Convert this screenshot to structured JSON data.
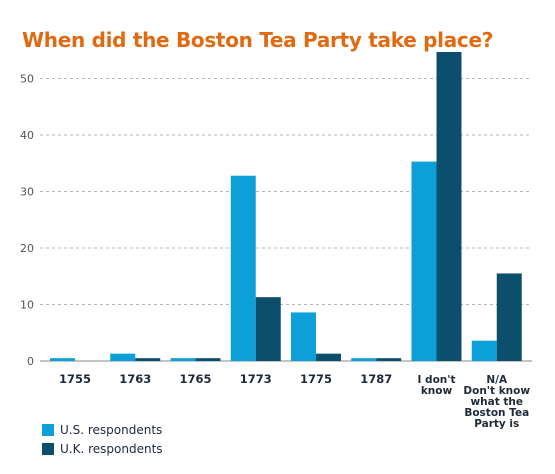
{
  "chart_data": {
    "type": "bar",
    "title": "When did the Boston Tea Party take place?",
    "categories": [
      "1755",
      "1763",
      "1765",
      "1773",
      "1775",
      "1787",
      "I don't know",
      "N/A Don't know what the Boston Tea Party is"
    ],
    "category_lines": [
      [
        "1755"
      ],
      [
        "1763"
      ],
      [
        "1765"
      ],
      [
        "1773"
      ],
      [
        "1775"
      ],
      [
        "1787"
      ],
      [
        "I don't",
        "know"
      ],
      [
        "N/A",
        "Don't know",
        "what the",
        "Boston Tea",
        "Party is"
      ]
    ],
    "series": [
      {
        "name": "U.S. respondents",
        "color": "#0d9fd8",
        "values": [
          0.5,
          1.3,
          0.5,
          32.8,
          8.6,
          0.5,
          35.3,
          3.6
        ]
      },
      {
        "name": "U.K. respondents",
        "color": "#0b4f6c",
        "values": [
          0,
          0.5,
          0.5,
          11.3,
          1.3,
          0.5,
          54.7,
          15.5
        ]
      }
    ],
    "yticks": [
      0,
      10,
      20,
      30,
      40,
      50
    ],
    "ylim": [
      0,
      54.7
    ],
    "grid": true,
    "legend_position": "bottom-left",
    "xlabel": "",
    "ylabel": ""
  }
}
